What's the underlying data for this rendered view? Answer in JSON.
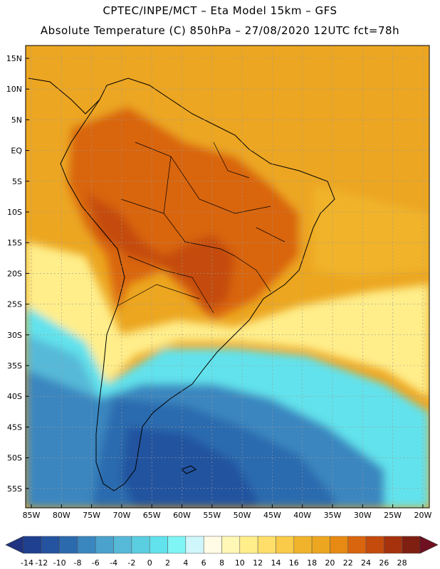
{
  "header": {
    "line1": "CPTEC/INPE/MCT –  Eta Model 15km – GFS",
    "line2": "Absolute Temperature (C) 850hPa – 27/08/2020 12UTC fct=78h"
  },
  "lat_labels": [
    "15N",
    "10N",
    "5N",
    "EQ",
    "5S",
    "10S",
    "15S",
    "20S",
    "25S",
    "30S",
    "35S",
    "40S",
    "45S",
    "50S",
    "55S"
  ],
  "lon_labels": [
    "85W",
    "80W",
    "75W",
    "70W",
    "65W",
    "60W",
    "55W",
    "50W",
    "45W",
    "40W",
    "35W",
    "30W",
    "25W",
    "20W"
  ],
  "colorbar": {
    "labels": [
      "-14",
      "-12",
      "-10",
      "-8",
      "-6",
      "-4",
      "-2",
      "0",
      "2",
      "4",
      "6",
      "8",
      "10",
      "12",
      "14",
      "16",
      "18",
      "20",
      "22",
      "24",
      "26",
      "28"
    ],
    "colors": [
      "#1f3f8f",
      "#24539f",
      "#2c6aae",
      "#3a86bf",
      "#4aa2cd",
      "#57b9d8",
      "#5bcde0",
      "#62e2ec",
      "#7ff5f5",
      "#cff6fb",
      "#fffbe4",
      "#fff7b5",
      "#ffee8a",
      "#ffdf6a",
      "#f9cb48",
      "#f0b32b",
      "#eca620",
      "#e68a14",
      "#d9650e",
      "#c44b0c",
      "#a5320c",
      "#7f1f12"
    ],
    "end_low": "#1f3380",
    "end_high": "#6e1020"
  },
  "regions": [
    {
      "name": "warm-tropics",
      "color": "#eca620"
    },
    {
      "name": "hot-interior",
      "color": "#d9650e"
    },
    {
      "name": "hottest-core",
      "color": "#c44b0c"
    },
    {
      "name": "atlantic-warm",
      "color": "#f0b32b"
    },
    {
      "name": "subtropical-yellow",
      "color": "#ffee8a"
    },
    {
      "name": "mid-ocean-cyan",
      "color": "#62e2ec"
    },
    {
      "name": "south-cold",
      "color": "#3a86bf"
    },
    {
      "name": "southern-deep-cold",
      "color": "#2c6aae"
    },
    {
      "name": "pacific-cyan",
      "color": "#57b9d8"
    },
    {
      "name": "andes-cold-core",
      "color": "#24539f"
    }
  ]
}
